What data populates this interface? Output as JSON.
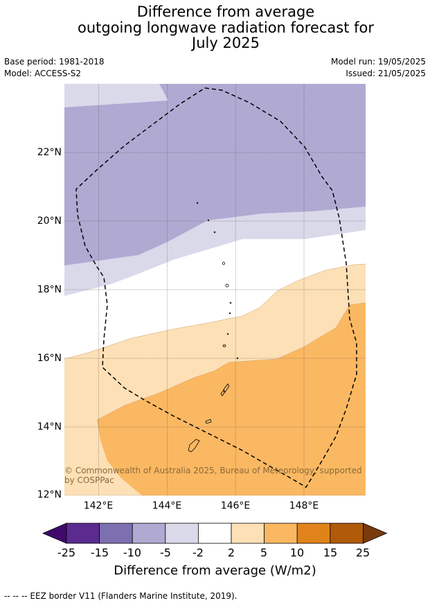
{
  "title_lines": [
    "Difference from average",
    "outgoing longwave radiation forecast for",
    "July 2025"
  ],
  "base_period": "Base period: 1981-2018",
  "model": "Model: ACCESS-S2",
  "model_run": "Model run: 19/05/2025",
  "issued": "Issued: 21/05/2025",
  "copyright": "© Commonwealth of Australia 2025, Bureau of Meteorology, supported by COSPPac",
  "footnote": "--  --  -- EEZ border V11 (Flanders Marine Institute, 2019).",
  "colors": {
    "lt_m10": "#b0a9d2",
    "lt_m5": "#d9d9ea",
    "m2_2": "#ffffff",
    "p2_5": "#fde0b6",
    "p5_10": "#fbb862"
  },
  "chart_data": {
    "type": "map",
    "map_extent": {
      "lon": [
        141,
        149.8
      ],
      "lat": [
        12,
        24
      ]
    },
    "xticks": [
      "142°E",
      "144°E",
      "146°E",
      "148°E"
    ],
    "xtick_values": [
      142,
      144,
      146,
      148
    ],
    "yticks": [
      "12°N",
      "14°N",
      "16°N",
      "18°N",
      "20°N",
      "22°N"
    ],
    "ytick_values": [
      12,
      14,
      16,
      18,
      20,
      22
    ],
    "colorbar": {
      "label": "Difference from average (W/m2)",
      "ticks": [
        "-25",
        "-15",
        "-10",
        "-5",
        "-2",
        "2",
        "5",
        "10",
        "15",
        "25"
      ],
      "colors": [
        "#3f0a6b",
        "#5b2b90",
        "#7d70b0",
        "#b0a9d2",
        "#d9d9ea",
        "#ffffff",
        "#fde0b6",
        "#fbb862",
        "#e0831b",
        "#b05a0a",
        "#7a3a0e"
      ]
    },
    "summary": {
      "north": "-10 to -5 W/m2 (lower outgoing longwave radiation)",
      "central": "-2 to 2 W/m2 near 17-19°N",
      "south": "5 to 10 W/m2 around Guam and southern Mariana Islands"
    }
  }
}
